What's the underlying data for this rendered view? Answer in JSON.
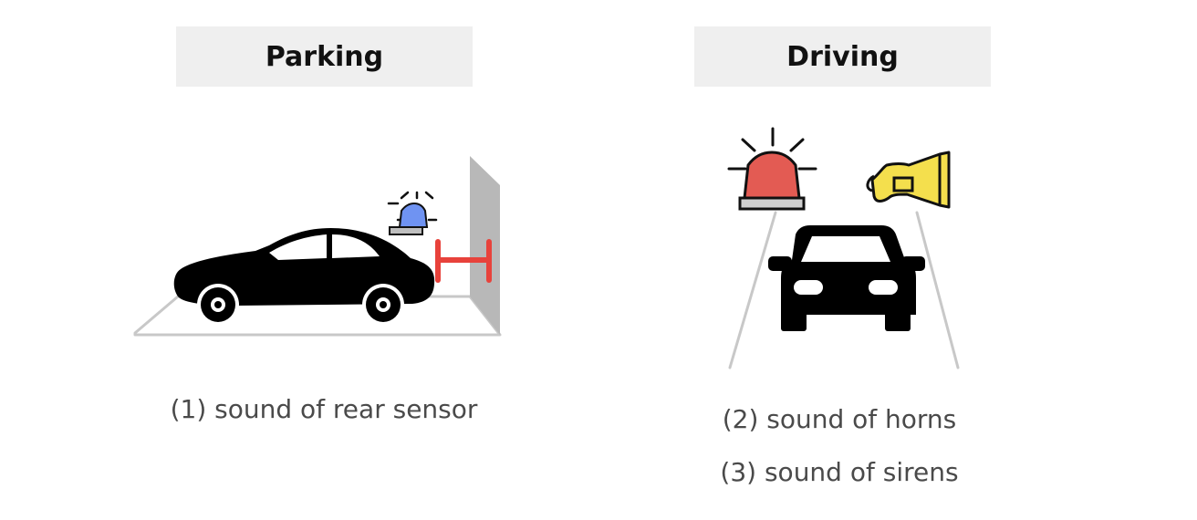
{
  "panels": {
    "parking": {
      "title": "Parking",
      "captions": [
        "(1) sound of rear sensor"
      ],
      "icons": [
        "car-side-icon",
        "blue-siren-icon",
        "distance-marker-icon",
        "wall-icon"
      ],
      "colors": {
        "siren": "#6f93f2",
        "marker": "#e8423b",
        "car": "#000000"
      }
    },
    "driving": {
      "title": "Driving",
      "captions": [
        "(2) sound of horns",
        "(3) sound of sirens"
      ],
      "icons": [
        "red-siren-icon",
        "horn-icon",
        "car-front-icon",
        "road-icon"
      ],
      "colors": {
        "siren": "#e35b53",
        "horn": "#f4df4d",
        "car": "#000000"
      }
    }
  }
}
